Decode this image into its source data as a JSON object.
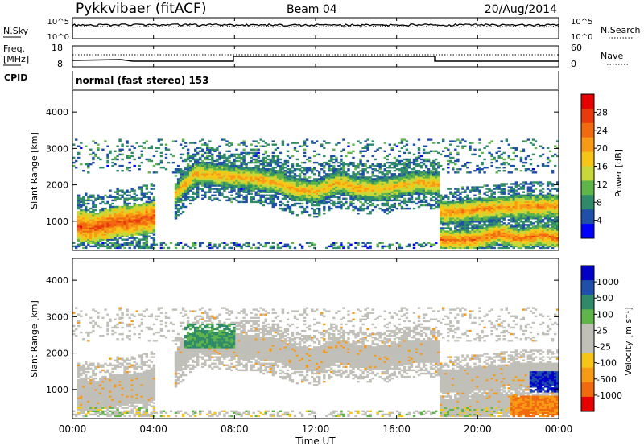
{
  "header": {
    "station": "Pykkvibaer (fitACF)",
    "beam": "Beam 04",
    "date": "20/Aug/2014"
  },
  "nsky_panel": {
    "label_left": "N.Sky",
    "tick_top": "10^5",
    "tick_bottom": "10^0",
    "label_right": "N.Search",
    "right_tick_top": "10^5",
    "right_tick_bottom": "10^0"
  },
  "freq_panel": {
    "label_top": "Freq.",
    "label_unit": "[MHz]",
    "tick_top": "18",
    "tick_bottom": "8",
    "right_label": "Nave",
    "right_tick_top": "60",
    "right_tick_bottom": "0"
  },
  "cpid_panel": {
    "label": "CPID",
    "mode_text": "normal (fast stereo) 153"
  },
  "x_axis": {
    "title": "Time UT",
    "ticks": [
      "00:00",
      "04:00",
      "08:00",
      "12:00",
      "16:00",
      "20:00",
      "00:00"
    ]
  },
  "colors": {
    "background_scatter": "#c0bfb8",
    "power_scale": [
      "#0000ff",
      "#1f4fa8",
      "#2f8a6a",
      "#5fb54a",
      "#c8d838",
      "#f5c518",
      "#f89a16",
      "#f26a10",
      "#e83a0c",
      "#e60000"
    ],
    "velocity_scale": [
      "#e60000",
      "#f26a10",
      "#f89a16",
      "#f5c518",
      "#c0bfb8",
      "#c0bfb8",
      "#5fb54a",
      "#2f8a6a",
      "#1f4fa8",
      "#0000c8"
    ]
  },
  "chart_data": [
    {
      "type": "heatmap",
      "name": "power",
      "ylabel": "Slant Range [km]",
      "yticks": [
        "1000",
        "2000",
        "3000",
        "4000"
      ],
      "ylim": [
        200,
        4600
      ],
      "colorbar_label": "Power [dB]",
      "colorbar_ticks": [
        "4",
        "8",
        "12",
        "16",
        "20",
        "24",
        "28"
      ],
      "colorbar_range": [
        0,
        32
      ],
      "xlim_hours": [
        0,
        24
      ],
      "bands": [
        {
          "t": [
            0.2,
            1.0,
            2.0,
            3.0,
            4.0
          ],
          "r": [
            850,
            780,
            950,
            1000,
            1100
          ],
          "width": 420,
          "value": 26
        },
        {
          "t": [
            5.0,
            6.0,
            7.0,
            8.0,
            9.0,
            10.0,
            11.0,
            12.0,
            13.0,
            14.0,
            15.0,
            16.0,
            17.0,
            18.0
          ],
          "r": [
            1700,
            2300,
            2250,
            2200,
            2150,
            2050,
            1850,
            1800,
            2050,
            1900,
            1850,
            1950,
            2050,
            2000
          ],
          "width": 320,
          "value": 20
        },
        {
          "t": [
            18.0,
            19.0,
            20.0,
            21.0,
            22.0,
            23.0,
            24.0
          ],
          "r": [
            1200,
            1250,
            1300,
            1350,
            1400,
            1400,
            1400
          ],
          "width": 300,
          "value": 22
        },
        {
          "t": [
            18.0,
            19.0,
            20.0,
            21.0,
            22.0,
            23.0,
            24.0
          ],
          "r": [
            500,
            450,
            500,
            650,
            500,
            600,
            500
          ],
          "width": 260,
          "value": 24
        }
      ]
    },
    {
      "type": "heatmap",
      "name": "velocity",
      "ylabel": "Slant Range [km]",
      "yticks": [
        "1000",
        "2000",
        "3000",
        "4000"
      ],
      "ylim": [
        200,
        4600
      ],
      "colorbar_label": "Velocity [m s⁻¹]",
      "colorbar_ticks": [
        "1000",
        "500",
        "100",
        "25",
        "-25",
        "-100",
        "-500",
        "-1000"
      ],
      "xlim_hours": [
        0,
        24
      ]
    }
  ]
}
